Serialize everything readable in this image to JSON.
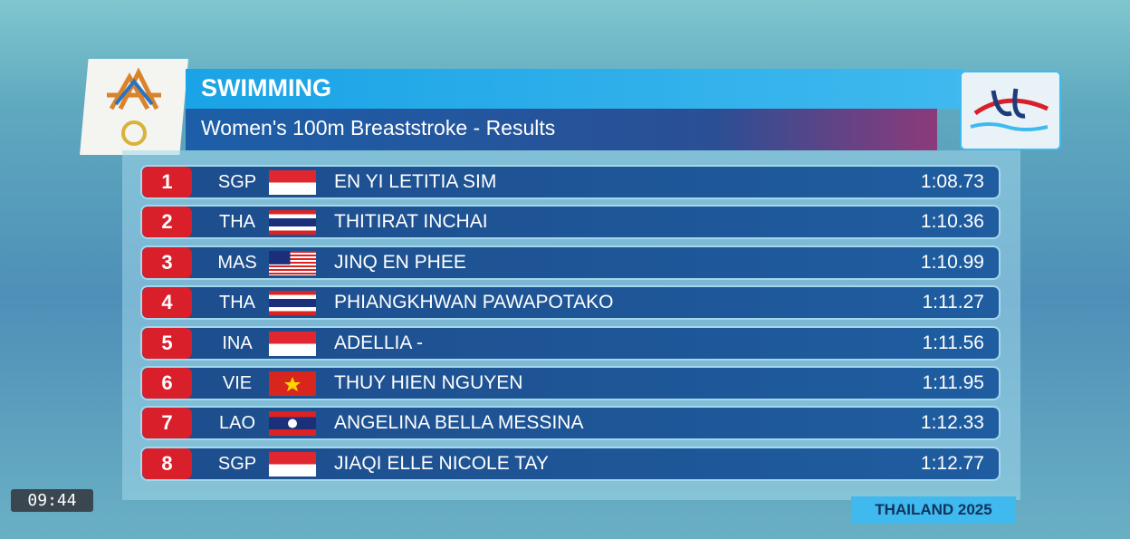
{
  "header": {
    "title": "SWIMMING",
    "subtitle": "Women's 100m Breaststroke - Results"
  },
  "table": {
    "rows": [
      [
        "1",
        "SGP",
        "EN YI LETITIA SIM",
        "1:08.73"
      ],
      [
        "2",
        "THA",
        "THITIRAT INCHAI",
        "1:10.36"
      ],
      [
        "3",
        "MAS",
        "JINQ EN PHEE",
        "1:10.99"
      ],
      [
        "4",
        "THA",
        "PHIANGKHWAN PAWAPOTAKO",
        "1:11.27"
      ],
      [
        "5",
        "INA",
        "ADELLIA -",
        "1:11.56"
      ],
      [
        "6",
        "VIE",
        "THUY HIEN NGUYEN",
        "1:11.95"
      ],
      [
        "7",
        "LAO",
        "ANGELINA BELLA MESSINA",
        "1:12.33"
      ],
      [
        "8",
        "SGP",
        "JIAQI ELLE NICOLE TAY",
        "1:12.77"
      ]
    ]
  },
  "clock": "09:44",
  "footer": "THAILAND 2025"
}
